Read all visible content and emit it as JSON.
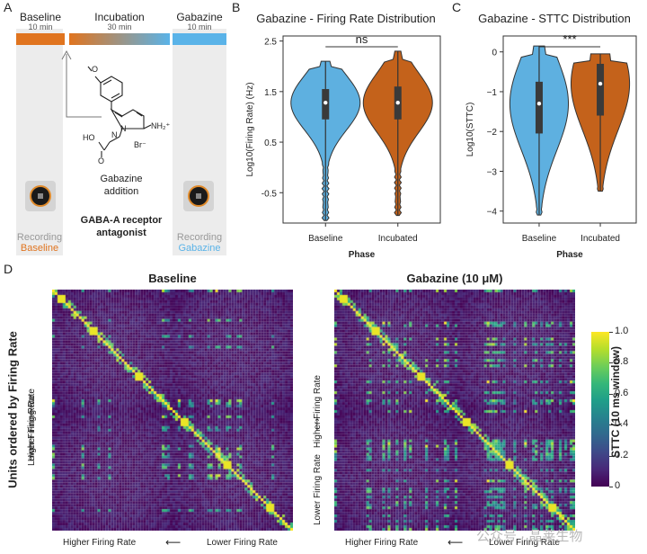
{
  "panels": {
    "a": "A",
    "b": "B",
    "c": "C",
    "d": "D"
  },
  "panel_a": {
    "baseline": {
      "label": "Baseline",
      "duration": "10 min",
      "color": "#e0741f"
    },
    "incubation": {
      "label": "Incubation",
      "duration": "30 min"
    },
    "gabazine": {
      "label": "Gabazine",
      "duration": "10 min",
      "color": "#5ab3e8"
    },
    "molecule": {
      "methoxy": "O",
      "n1": "N",
      "n2": "N",
      "nh2": "NH₂⁺",
      "ho": "HO",
      "o": "O",
      "br": "Br⁻"
    },
    "addition": [
      "Gabazine",
      "addition"
    ],
    "antagonist": [
      "GABA-A receptor",
      "antagonist"
    ],
    "rec_left": {
      "line1": "Recording",
      "line2": "Baseline"
    },
    "rec_right": {
      "line1": "Recording",
      "line2": "Gabazine"
    }
  },
  "chart_data": [
    {
      "type": "violin",
      "title": "Gabazine - Firing Rate Distribution",
      "xlabel": "Phase",
      "ylabel": "Log10(Firing Rate) (Hz)",
      "categories": [
        "Baseline",
        "Incubated"
      ],
      "ylim": [
        -1.1,
        2.6
      ],
      "yticks": [
        -0.5,
        0.5,
        1.5,
        2.5
      ],
      "ytick_labels": [
        "-0.5",
        "0.5",
        "1.5",
        "2.5"
      ],
      "colors": [
        "#5eb0e0",
        "#c4621b"
      ],
      "series": [
        {
          "name": "Baseline",
          "min": -1.05,
          "q1": 0.95,
          "median": 1.28,
          "q3": 1.55,
          "max": 2.1
        },
        {
          "name": "Incubated",
          "min": -0.95,
          "q1": 0.95,
          "median": 1.28,
          "q3": 1.6,
          "max": 2.3
        }
      ],
      "significance": "ns"
    },
    {
      "type": "violin",
      "title": "Gabazine - STTC Distribution",
      "xlabel": "Phase",
      "ylabel": "Log10(STTC)",
      "categories": [
        "Baseline",
        "Incubated"
      ],
      "ylim": [
        -4.3,
        0.4
      ],
      "yticks": [
        -4,
        -3,
        -2,
        -1,
        0
      ],
      "ytick_labels": [
        "−4",
        "−3",
        "−2",
        "−1",
        "0"
      ],
      "colors": [
        "#5eb0e0",
        "#c4621b"
      ],
      "series": [
        {
          "name": "Baseline",
          "min": -4.1,
          "q1": -2.05,
          "median": -1.3,
          "q3": -0.75,
          "max": 0.15
        },
        {
          "name": "Incubated",
          "min": -3.5,
          "q1": -1.6,
          "median": -0.8,
          "q3": -0.3,
          "max": -0.05
        }
      ],
      "significance": "***"
    },
    {
      "type": "heatmap",
      "title": "Baseline",
      "xlabel_left": "Higher Firing Rate",
      "xlabel_right": "Lower Firing Rate",
      "ylabel_top": "Higher Firing Rate",
      "ylabel_bottom": "Lower Firing Rate",
      "seed": 7
    },
    {
      "type": "heatmap",
      "title": "Gabazine (10 μM)",
      "xlabel_left": "Higher Firing Rate",
      "xlabel_right": "Lower Firing Rate",
      "ylabel_top": "Higher Firing Rate",
      "ylabel_bottom": "Lower Firing Rate",
      "seed": 13
    }
  ],
  "colorbar": {
    "label": "STTC (10 ms window)",
    "ticks": [
      "0",
      "0.2",
      "0.4",
      "0.6",
      "0.8",
      "1.0"
    ]
  },
  "d_ylabel": "Units ordered by Firing Rate",
  "watermark": "公众号 · 晶莱生物"
}
